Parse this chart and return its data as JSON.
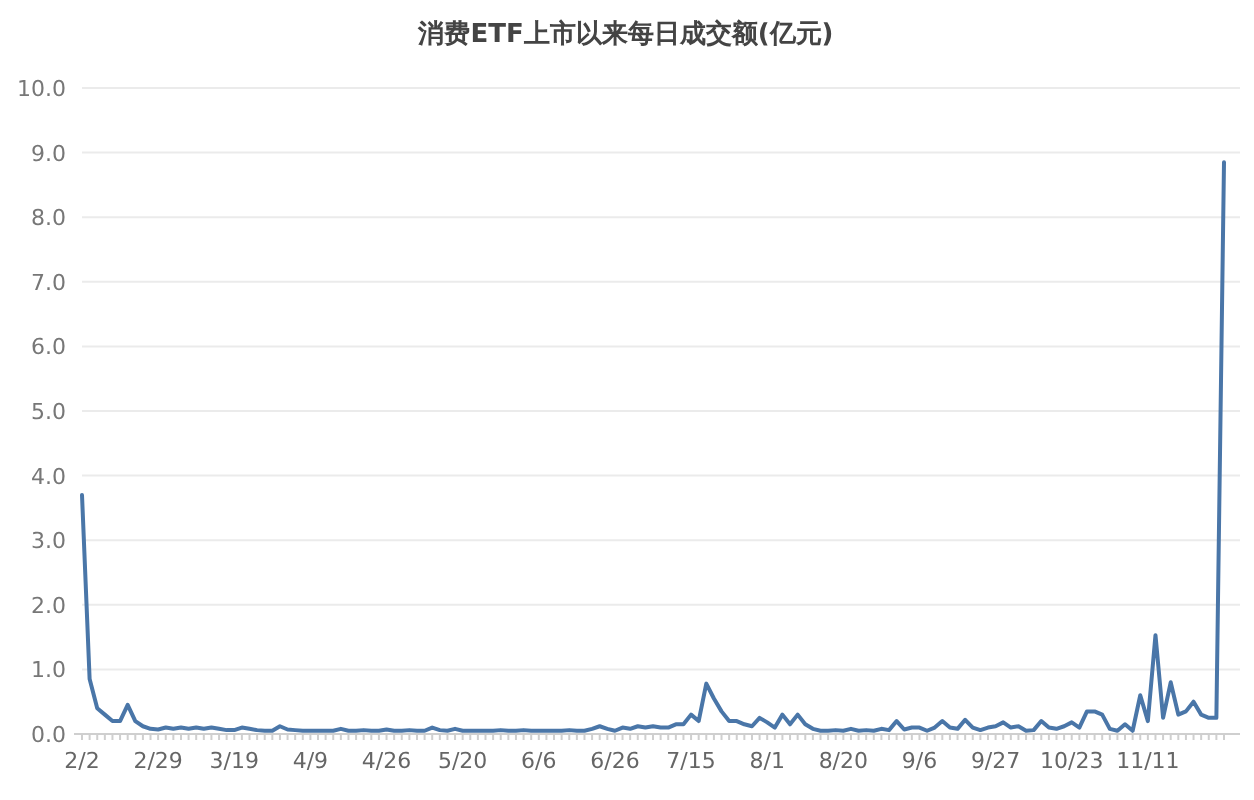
{
  "chart_data": {
    "type": "line",
    "title": "消费ETF上市以来每日成交额(亿元)",
    "categories": [
      "2/2",
      null,
      null,
      null,
      null,
      null,
      null,
      null,
      null,
      null,
      "2/29",
      null,
      null,
      null,
      null,
      null,
      null,
      null,
      null,
      null,
      "3/19",
      null,
      null,
      null,
      null,
      null,
      null,
      null,
      null,
      null,
      "4/9",
      null,
      null,
      null,
      null,
      null,
      null,
      null,
      null,
      null,
      "4/26",
      null,
      null,
      null,
      null,
      null,
      null,
      null,
      null,
      null,
      "5/20",
      null,
      null,
      null,
      null,
      null,
      null,
      null,
      null,
      null,
      "6/6",
      null,
      null,
      null,
      null,
      null,
      null,
      null,
      null,
      null,
      "6/26",
      null,
      null,
      null,
      null,
      null,
      null,
      null,
      null,
      null,
      "7/15",
      null,
      null,
      null,
      null,
      null,
      null,
      null,
      null,
      null,
      "8/1",
      null,
      null,
      null,
      null,
      null,
      null,
      null,
      null,
      null,
      "8/20",
      null,
      null,
      null,
      null,
      null,
      null,
      null,
      null,
      null,
      "9/6",
      null,
      null,
      null,
      null,
      null,
      null,
      null,
      null,
      null,
      "9/27",
      null,
      null,
      null,
      null,
      null,
      null,
      null,
      null,
      null,
      "10/23",
      null,
      null,
      null,
      null,
      null,
      null,
      null,
      null,
      null,
      "11/11",
      null,
      null,
      null,
      null,
      null,
      null,
      null,
      null,
      null,
      null
    ],
    "series": [
      {
        "color": "#4a76a8",
        "values": [
          3.7,
          0.85,
          0.4,
          0.3,
          0.2,
          0.2,
          0.45,
          0.2,
          0.12,
          0.08,
          0.07,
          0.1,
          0.08,
          0.1,
          0.08,
          0.1,
          0.08,
          0.1,
          0.08,
          0.06,
          0.06,
          0.1,
          0.08,
          0.06,
          0.05,
          0.05,
          0.12,
          0.07,
          0.06,
          0.05,
          0.05,
          0.05,
          0.05,
          0.05,
          0.08,
          0.05,
          0.05,
          0.06,
          0.05,
          0.05,
          0.07,
          0.05,
          0.05,
          0.06,
          0.05,
          0.05,
          0.1,
          0.06,
          0.05,
          0.08,
          0.05,
          0.05,
          0.05,
          0.05,
          0.05,
          0.06,
          0.05,
          0.05,
          0.06,
          0.05,
          0.05,
          0.05,
          0.05,
          0.05,
          0.06,
          0.05,
          0.05,
          0.08,
          0.12,
          0.08,
          0.05,
          0.1,
          0.08,
          0.12,
          0.1,
          0.12,
          0.1,
          0.1,
          0.15,
          0.15,
          0.3,
          0.2,
          0.78,
          0.55,
          0.35,
          0.2,
          0.2,
          0.15,
          0.12,
          0.25,
          0.18,
          0.1,
          0.3,
          0.15,
          0.3,
          0.15,
          0.08,
          0.05,
          0.05,
          0.06,
          0.05,
          0.08,
          0.05,
          0.06,
          0.05,
          0.08,
          0.06,
          0.2,
          0.07,
          0.1,
          0.1,
          0.05,
          0.1,
          0.2,
          0.1,
          0.08,
          0.22,
          0.1,
          0.06,
          0.1,
          0.12,
          0.18,
          0.1,
          0.12,
          0.05,
          0.06,
          0.2,
          0.1,
          0.08,
          0.12,
          0.18,
          0.1,
          0.35,
          0.35,
          0.3,
          0.08,
          0.05,
          0.15,
          0.05,
          0.6,
          0.2,
          1.53,
          0.25,
          0.8,
          0.3,
          0.35,
          0.5,
          0.3,
          0.25,
          0.25,
          8.85
        ]
      }
    ],
    "ylim": [
      0,
      10
    ],
    "yticks": [
      {
        "value": 0,
        "label": "0.0"
      },
      {
        "value": 1,
        "label": "1.0"
      },
      {
        "value": 2,
        "label": "2.0"
      },
      {
        "value": 3,
        "label": "3.0"
      },
      {
        "value": 4,
        "label": "4.0"
      },
      {
        "value": 5,
        "label": "5.0"
      },
      {
        "value": 6,
        "label": "6.0"
      },
      {
        "value": 7,
        "label": "7.0"
      },
      {
        "value": 8,
        "label": "8.0"
      },
      {
        "value": 9,
        "label": "9.0"
      },
      {
        "value": 10,
        "label": "10.0"
      }
    ],
    "grid": "y",
    "marker": "none",
    "line_style": "solid"
  }
}
